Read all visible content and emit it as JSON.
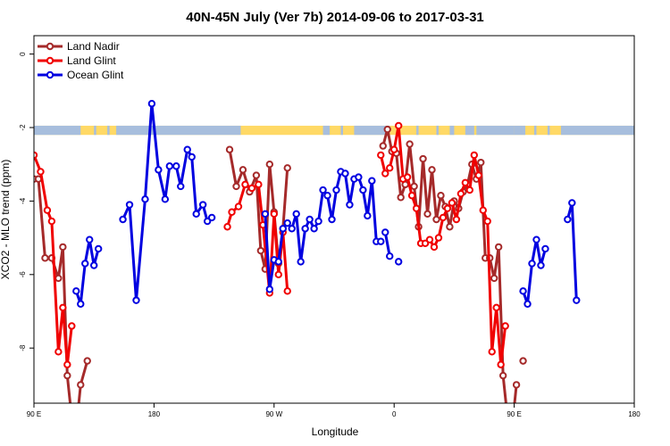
{
  "chart_data": {
    "type": "line",
    "title": "40N-45N July (Ver 7b)   2014-09-06 to 2017-03-31",
    "xlabel": "Longitude",
    "ylabel": "XCO2 - MLO trend (ppm)",
    "xlim": [
      -90,
      180
    ],
    "ylim": [
      -9.5,
      0.5
    ],
    "x_ticks": [
      {
        "value": -90,
        "label": "90 E"
      },
      {
        "value": -36,
        "label": "180"
      },
      {
        "value": 18,
        "label": "90 W"
      },
      {
        "value": 72,
        "label": "0"
      },
      {
        "value": 126,
        "label": "90 E"
      },
      {
        "value": 180,
        "label": "180"
      }
    ],
    "y_ticks": [
      {
        "value": 0,
        "label": "0"
      },
      {
        "value": -2,
        "label": "-2"
      },
      {
        "value": -4,
        "label": "-4"
      },
      {
        "value": -6,
        "label": "-6"
      },
      {
        "value": -8,
        "label": "-8"
      }
    ],
    "grid": false,
    "legend_position": "top-left",
    "land_ocean_band": {
      "y_range": [
        -2.2,
        -1.95
      ],
      "land_color": "#FFD966",
      "ocean_color": "#A7BEDD",
      "ocean_segments": [
        [
          -90,
          -69
        ],
        [
          -63,
          -62
        ],
        [
          -57,
          -56
        ],
        [
          -53,
          -36
        ],
        [
          -36,
          3
        ],
        [
          40,
          43
        ],
        [
          48,
          49
        ],
        [
          54,
          70
        ],
        [
          82,
          83
        ],
        [
          91,
          92
        ],
        [
          97,
          99
        ],
        [
          104,
          108
        ],
        [
          109,
          126
        ],
        [
          126,
          131
        ],
        [
          135,
          136
        ],
        [
          141,
          142
        ],
        [
          147,
          180
        ]
      ]
    },
    "series": [
      {
        "name": "Land Nadir",
        "color": "#A52A2A",
        "segments": [
          [
            [
              -90,
              -3.4
            ],
            [
              -88,
              -3.4
            ],
            [
              -85,
              -5.55
            ],
            [
              -82,
              -5.55
            ],
            [
              -79,
              -6.1
            ],
            [
              -77,
              -5.25
            ],
            [
              -75,
              -8.75
            ],
            [
              -73,
              -9.9
            ],
            [
              -71,
              -10.2
            ],
            [
              -69,
              -9.0
            ],
            [
              -66,
              -8.35
            ]
          ],
          [
            [
              -2,
              -2.6
            ],
            [
              1,
              -3.6
            ],
            [
              4,
              -3.15
            ],
            [
              7,
              -3.75
            ],
            [
              10,
              -3.3
            ],
            [
              12,
              -5.35
            ],
            [
              14,
              -5.85
            ],
            [
              16,
              -3.0
            ],
            [
              18,
              -4.3
            ],
            [
              20,
              -5.7
            ],
            [
              22,
              -4.75
            ],
            [
              24,
              -3.1
            ]
          ],
          [
            [
              67,
              -2.5
            ],
            [
              69,
              -2.05
            ],
            [
              71,
              -2.65
            ],
            [
              73,
              -2.7
            ],
            [
              75,
              -3.9
            ],
            [
              77,
              -3.55
            ],
            [
              79,
              -2.45
            ],
            [
              81,
              -3.6
            ],
            [
              83,
              -4.7
            ],
            [
              85,
              -2.85
            ],
            [
              87,
              -4.35
            ],
            [
              89,
              -3.15
            ],
            [
              91,
              -4.5
            ],
            [
              93,
              -3.85
            ],
            [
              95,
              -4.15
            ],
            [
              97,
              -4.7
            ],
            [
              99,
              -4.0
            ],
            [
              101,
              -4.2
            ],
            [
              103,
              -3.75
            ],
            [
              105,
              -3.55
            ],
            [
              107,
              -3.0
            ],
            [
              109,
              -3.4
            ],
            [
              111,
              -2.95
            ],
            [
              113,
              -5.55
            ],
            [
              115,
              -5.55
            ],
            [
              117,
              -6.1
            ],
            [
              119,
              -5.25
            ],
            [
              121,
              -8.75
            ],
            [
              123,
              -9.9
            ],
            [
              125,
              -10.2
            ],
            [
              127,
              -9.0
            ]
          ],
          [
            [
              130,
              -8.35
            ]
          ]
        ]
      },
      {
        "name": "Land Glint",
        "color": "#F00000",
        "segments": [
          [
            [
              -90,
              -2.75
            ],
            [
              -87,
              -3.2
            ],
            [
              -84,
              -4.25
            ],
            [
              -82,
              -4.55
            ],
            [
              -79,
              -8.1
            ],
            [
              -77,
              -6.9
            ],
            [
              -75,
              -8.45
            ],
            [
              -73,
              -7.4
            ]
          ],
          [
            [
              -3,
              -4.7
            ],
            [
              -1,
              -4.3
            ],
            [
              2,
              -4.15
            ],
            [
              5,
              -3.55
            ],
            [
              8,
              -3.65
            ],
            [
              11,
              -3.55
            ],
            [
              13,
              -4.65
            ],
            [
              16,
              -6.5
            ],
            [
              18,
              -4.35
            ],
            [
              20,
              -6.0
            ],
            [
              22,
              -4.85
            ],
            [
              24,
              -6.45
            ]
          ],
          [
            [
              66,
              -2.75
            ],
            [
              68,
              -3.25
            ],
            [
              70,
              -3.1
            ],
            [
              72,
              -2.6
            ],
            [
              74,
              -1.95
            ],
            [
              76,
              -3.4
            ],
            [
              78,
              -3.35
            ],
            [
              80,
              -3.85
            ],
            [
              82,
              -4.2
            ],
            [
              84,
              -5.15
            ],
            [
              86,
              -5.15
            ],
            [
              88,
              -5.05
            ],
            [
              90,
              -5.25
            ],
            [
              92,
              -5.0
            ],
            [
              94,
              -4.45
            ],
            [
              96,
              -4.2
            ],
            [
              98,
              -4.05
            ],
            [
              100,
              -4.5
            ],
            [
              102,
              -3.8
            ],
            [
              104,
              -3.5
            ],
            [
              106,
              -3.7
            ],
            [
              108,
              -2.75
            ],
            [
              110,
              -3.3
            ],
            [
              112,
              -4.25
            ],
            [
              114,
              -4.55
            ],
            [
              116,
              -8.1
            ],
            [
              118,
              -6.9
            ],
            [
              120,
              -8.45
            ],
            [
              122,
              -7.4
            ]
          ]
        ]
      },
      {
        "name": "Ocean Glint",
        "color": "#0000E0",
        "segments": [
          [
            [
              -71,
              -6.45
            ],
            [
              -69,
              -6.8
            ],
            [
              -67,
              -5.7
            ],
            [
              -65,
              -5.05
            ],
            [
              -63,
              -5.75
            ],
            [
              -61,
              -5.3
            ]
          ],
          [
            [
              -50,
              -4.5
            ],
            [
              -47,
              -4.1
            ],
            [
              -44,
              -6.7
            ],
            [
              -40,
              -3.95
            ],
            [
              -37,
              -1.35
            ],
            [
              -34,
              -3.15
            ],
            [
              -31,
              -3.95
            ],
            [
              -29,
              -3.05
            ],
            [
              -26,
              -3.05
            ],
            [
              -24,
              -3.6
            ],
            [
              -21,
              -2.6
            ],
            [
              -19,
              -2.8
            ],
            [
              -17,
              -4.35
            ],
            [
              -14,
              -4.1
            ],
            [
              -12,
              -4.55
            ],
            [
              -10,
              -4.45
            ]
          ],
          [
            [
              14,
              -4.35
            ],
            [
              16,
              -6.4
            ],
            [
              18,
              -5.6
            ],
            [
              20,
              -5.65
            ],
            [
              22,
              -4.75
            ],
            [
              24,
              -4.6
            ],
            [
              26,
              -4.75
            ],
            [
              28,
              -4.35
            ],
            [
              30,
              -5.65
            ],
            [
              32,
              -4.75
            ],
            [
              34,
              -4.5
            ],
            [
              36,
              -4.75
            ],
            [
              38,
              -4.55
            ],
            [
              40,
              -3.7
            ],
            [
              42,
              -3.85
            ],
            [
              44,
              -4.5
            ],
            [
              46,
              -3.7
            ],
            [
              48,
              -3.2
            ],
            [
              50,
              -3.25
            ],
            [
              52,
              -4.1
            ],
            [
              54,
              -3.4
            ],
            [
              56,
              -3.35
            ],
            [
              58,
              -3.7
            ],
            [
              60,
              -4.4
            ],
            [
              62,
              -3.45
            ],
            [
              64,
              -5.1
            ],
            [
              66,
              -5.1
            ]
          ],
          [
            [
              68,
              -4.85
            ],
            [
              70,
              -5.5
            ]
          ],
          [
            [
              74,
              -5.65
            ]
          ],
          [
            [
              130,
              -6.45
            ],
            [
              132,
              -6.8
            ],
            [
              134,
              -5.7
            ],
            [
              136,
              -5.05
            ],
            [
              138,
              -5.75
            ],
            [
              140,
              -5.3
            ]
          ],
          [
            [
              150,
              -4.5
            ],
            [
              152,
              -4.05
            ],
            [
              154,
              -6.7
            ]
          ]
        ]
      }
    ]
  }
}
